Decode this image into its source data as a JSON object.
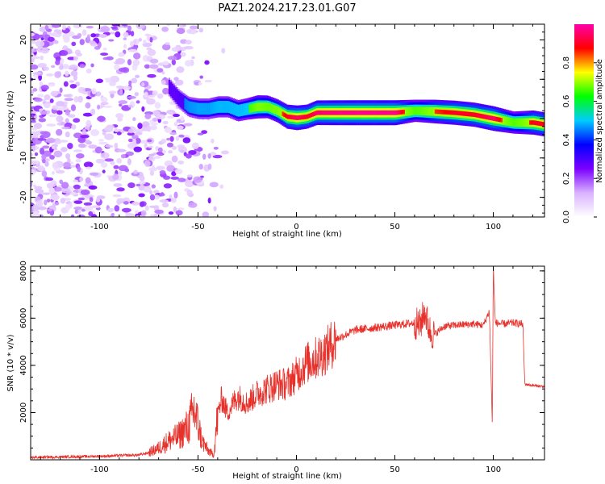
{
  "title": "PAZ1.2024.217.23.01.G07",
  "chart_data": [
    {
      "type": "heatmap",
      "xlabel": "Height of straight line (km)",
      "ylabel": "Frequency (Hz)",
      "xlim": [
        -135,
        126
      ],
      "ylim": [
        -25,
        24
      ],
      "x_ticks": [
        -100,
        -50,
        0,
        50,
        100
      ],
      "y_ticks": [
        -20,
        -10,
        0,
        10,
        20
      ],
      "colorbar": {
        "label": "Normalized spectral amplitude",
        "range": [
          0,
          1
        ],
        "ticks": [
          0.0,
          0.2,
          0.4,
          0.6,
          0.8
        ],
        "colormap": [
          "#ffffff",
          "#d9b3ff",
          "#7b00ff",
          "#0000ff",
          "#00ccff",
          "#00ff00",
          "#ffff00",
          "#ff0000",
          "#ff00aa"
        ]
      },
      "ridge": {
        "x": [
          -65,
          -60,
          -55,
          -50,
          -45,
          -40,
          -35,
          -30,
          -25,
          -20,
          -15,
          -10,
          -5,
          0,
          5,
          10,
          20,
          30,
          40,
          50,
          60,
          70,
          80,
          90,
          100,
          110,
          120,
          126
        ],
        "freq": [
          8,
          5,
          3,
          2.5,
          2.5,
          3,
          3,
          2,
          2.5,
          3,
          3,
          2,
          0.5,
          0.2,
          0.5,
          1.5,
          1.5,
          1.5,
          1.5,
          1.5,
          2,
          1.8,
          1.5,
          1,
          0,
          -1,
          -1,
          -1.5
        ],
        "amplitude": [
          0.35,
          0.4,
          0.5,
          0.55,
          0.55,
          0.6,
          0.6,
          0.62,
          0.65,
          0.8,
          0.75,
          0.8,
          0.9,
          0.95,
          0.9,
          0.95,
          0.97,
          0.98,
          0.98,
          0.98,
          0.7,
          0.85,
          0.9,
          0.9,
          0.95,
          0.7,
          0.9,
          0.9
        ]
      },
      "noise_extent_x": [
        -135,
        -60
      ]
    },
    {
      "type": "line",
      "xlabel": "Height of straight line (km)",
      "ylabel": "SNR (10 * v/v)",
      "xlim": [
        -135,
        126
      ],
      "ylim": [
        0,
        8200
      ],
      "x_ticks": [
        -100,
        -50,
        0,
        50,
        100
      ],
      "y_ticks": [
        2000,
        4000,
        6000,
        8000
      ],
      "series": [
        {
          "color": "#e8302a",
          "x": [
            -135,
            -120,
            -100,
            -90,
            -80,
            -75,
            -70,
            -65,
            -60,
            -55,
            -52,
            -50,
            -48,
            -45,
            -42,
            -40,
            -38,
            -35,
            -30,
            -25,
            -20,
            -15,
            -10,
            -5,
            0,
            5,
            10,
            15,
            20,
            25,
            30,
            40,
            50,
            60,
            63,
            65,
            68,
            70,
            75,
            80,
            90,
            95,
            98,
            99.5,
            100,
            101,
            105,
            110,
            115,
            116,
            120,
            126
          ],
          "y": [
            100,
            120,
            150,
            180,
            200,
            300,
            500,
            800,
            1000,
            1400,
            2100,
            1500,
            800,
            400,
            200,
            1900,
            2600,
            2000,
            2700,
            2400,
            2800,
            3000,
            3200,
            3200,
            3600,
            4100,
            4300,
            4600,
            5100,
            5300,
            5500,
            5600,
            5700,
            5800,
            5700,
            6300,
            5400,
            5300,
            5650,
            5700,
            5750,
            5700,
            6300,
            1500,
            8200,
            5800,
            5750,
            5800,
            5750,
            3200,
            3150,
            3100
          ]
        }
      ]
    }
  ]
}
